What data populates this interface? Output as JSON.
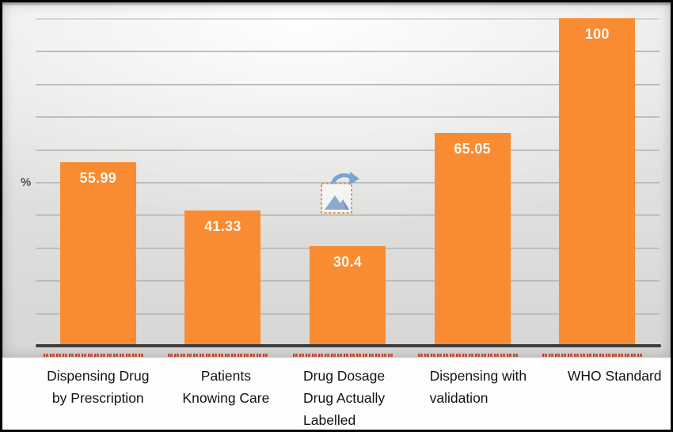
{
  "chart_data": {
    "type": "bar",
    "title": "",
    "categories": [
      "Dispensing Drug by Prescription",
      "Patients Knowing Care",
      "Drug Dosage Drug Actually Labelled",
      "Dispensing with validation",
      "WHO Standard"
    ],
    "values": [
      55.99,
      41.33,
      30.4,
      65.05,
      100
    ],
    "data_labels": [
      "55.99",
      "41.33",
      "30.4",
      "65.05",
      "100"
    ],
    "xlabel": "",
    "ylabel": "%",
    "ylim": [
      0,
      100
    ],
    "gridline_interval": 10,
    "grid": true,
    "legend": "none",
    "bar_color": "#F98C33",
    "data_label_color": "#FFF9F2",
    "axis_color": "#3D3D3D",
    "gridline_color": "#BABAB8",
    "category_label_color": "#141414",
    "plot_background": "gray-gradient"
  },
  "overlay": {
    "broken_image_icon": "broken-image-icon",
    "artifact_segment_count": 5,
    "artifact_color": "#B5372B"
  }
}
